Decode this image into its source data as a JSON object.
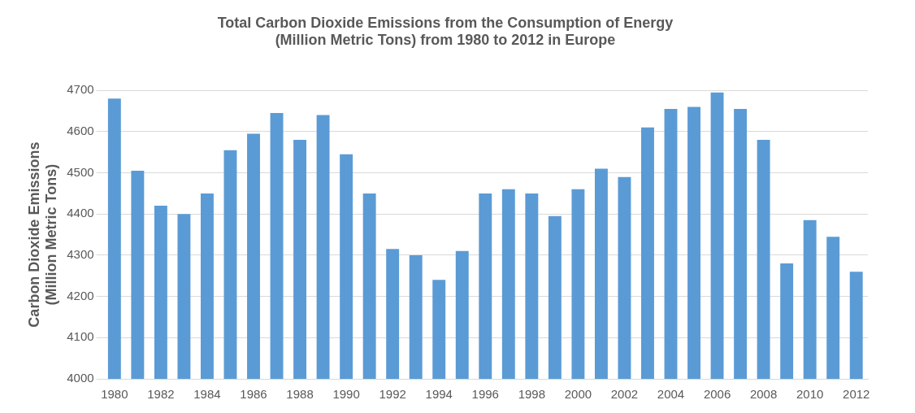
{
  "chart_data": {
    "type": "bar",
    "title": "Total Carbon Dioxide Emissions from the Consumption of Energy (Million Metric Tons) from 1980 to 2012 in Europe",
    "ylabel": "Carbon Dioxide Emissions (Million Metric Tons)",
    "categories": [
      "1980",
      null,
      "1982",
      null,
      "1984",
      null,
      "1986",
      null,
      "1988",
      null,
      "1990",
      null,
      "1992",
      null,
      "1994",
      null,
      "1996",
      null,
      "1998",
      null,
      "2000",
      null,
      "2002",
      null,
      "2004",
      null,
      "2006",
      null,
      "2008",
      null,
      "2010",
      null,
      "2012"
    ],
    "values": [
      4680,
      4505,
      4420,
      4400,
      4450,
      4555,
      4595,
      4645,
      4580,
      4640,
      4545,
      4450,
      4315,
      4300,
      4240,
      4310,
      4450,
      4460,
      4450,
      4395,
      4460,
      4510,
      4490,
      4610,
      4655,
      4660,
      4695,
      4655,
      4580,
      4280,
      4385,
      4345,
      4260
    ],
    "color": "#5b9bd5",
    "ylim": [
      4000,
      4700
    ],
    "yticks": [
      4000,
      4100,
      4200,
      4300,
      4400,
      4500,
      4600,
      4700
    ],
    "grid": "y"
  }
}
